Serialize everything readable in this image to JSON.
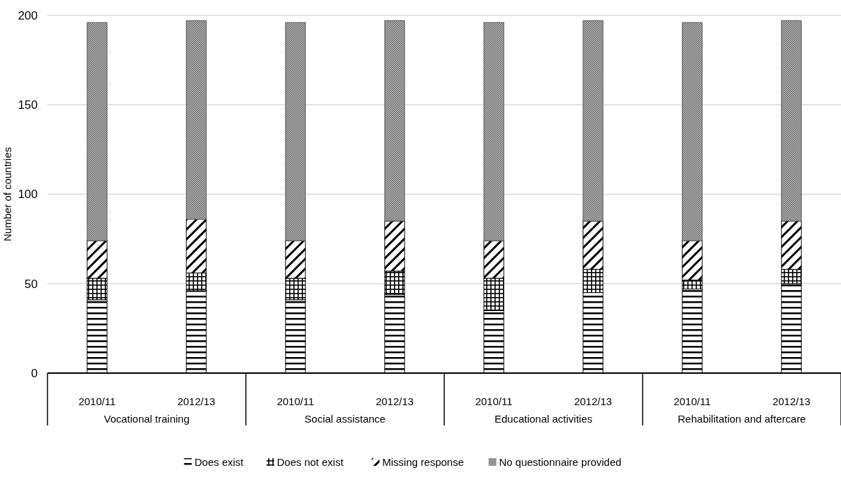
{
  "chart_data": {
    "type": "bar",
    "stacked": true,
    "ylabel": "Number of countries",
    "categories": [
      "2010/11",
      "2012/13",
      "2010/11",
      "2012/13",
      "2010/11",
      "2012/13",
      "2010/11",
      "2012/13"
    ],
    "annotations": [
      "Vocational training",
      "Social assistance",
      "Educational activities",
      "Rehabilitation and aftercare"
    ],
    "series": [
      {
        "name": "Does exist",
        "color": "#000000",
        "values": [
          41,
          46,
          41,
          44,
          35,
          45,
          47,
          50
        ]
      },
      {
        "name": "Does not exist",
        "color": "#000000",
        "values": [
          12,
          10,
          12,
          13,
          18,
          13,
          5,
          8
        ]
      },
      {
        "name": "Missing response",
        "color": "#000000",
        "values": [
          21,
          30,
          21,
          28,
          21,
          27,
          22,
          27
        ]
      },
      {
        "name": "No questionnaire provided",
        "color": "#595959",
        "values": [
          122,
          111,
          122,
          112,
          122,
          112,
          122,
          112
        ]
      }
    ],
    "ylim": [
      0,
      200
    ],
    "yticks": [
      0,
      50,
      100,
      150,
      200
    ],
    "grid": "y",
    "legend": "bottom"
  }
}
